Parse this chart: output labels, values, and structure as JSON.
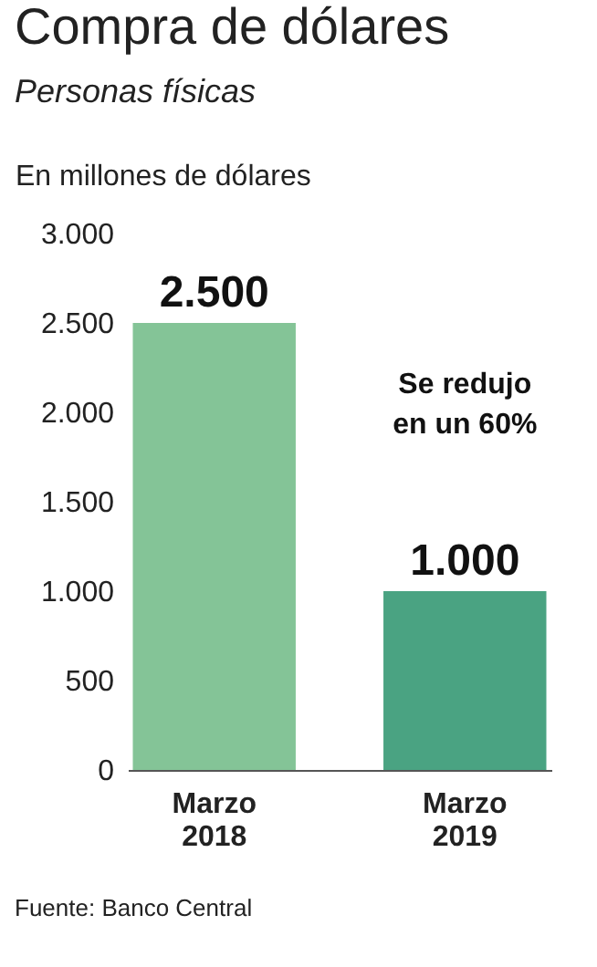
{
  "chart_data": {
    "type": "bar",
    "title": "Compra de dólares",
    "subtitle": "Personas físicas",
    "ylabel": "En millones de dólares",
    "categories": [
      "Marzo 2018",
      "Marzo 2019"
    ],
    "values": [
      2500,
      1000
    ],
    "colors": [
      "#84c497",
      "#4aa382"
    ],
    "value_labels": [
      "2.500",
      "1.000"
    ],
    "ylim": [
      0,
      3000
    ],
    "yticks": [
      {
        "value": 0,
        "label": "0"
      },
      {
        "value": 500,
        "label": "500"
      },
      {
        "value": 1000,
        "label": "1.000"
      },
      {
        "value": 1500,
        "label": "1.500"
      },
      {
        "value": 2000,
        "label": "2.000"
      },
      {
        "value": 2500,
        "label": "2.500"
      },
      {
        "value": 3000,
        "label": "3.000"
      }
    ],
    "grid": false,
    "annotations": [
      "Se redujo en un 60%",
      "Fuente: Banco Central"
    ]
  }
}
